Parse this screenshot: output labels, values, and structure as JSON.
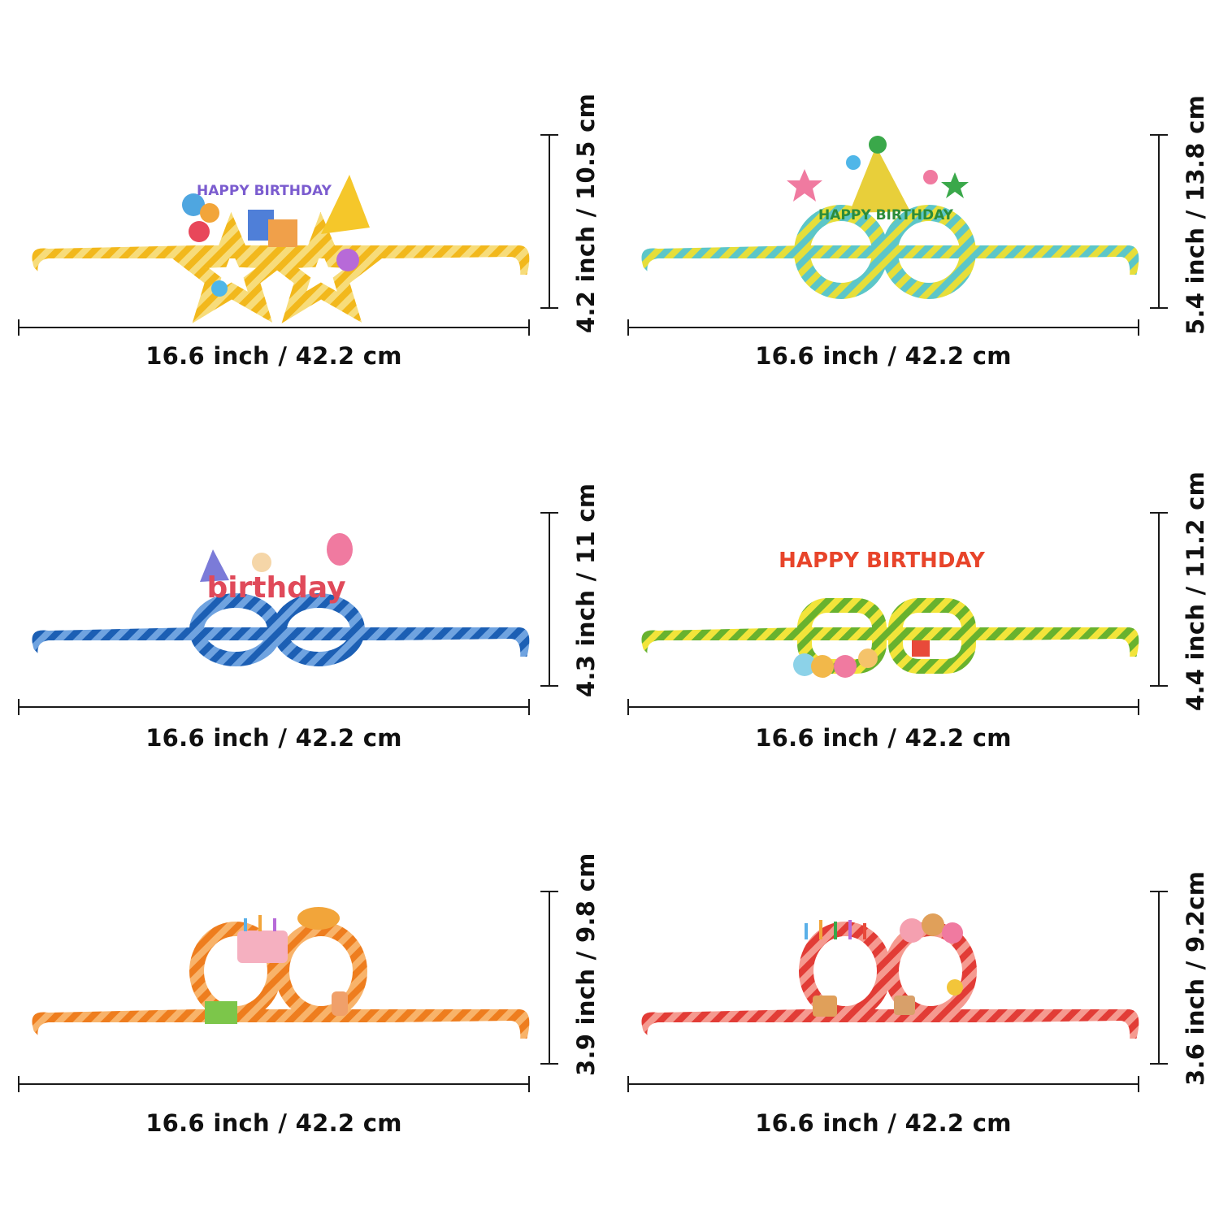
{
  "items": [
    {
      "width_label": "16.6 inch / 42.2 cm",
      "height_label": "4.2 inch / 10.5 cm",
      "frame_color": "#f2b81c",
      "stripe_color": "#f7dc7a",
      "banner_text": "HAPPY BIRTHDAY",
      "banner_color": "#7b5ccf"
    },
    {
      "width_label": "16.6 inch / 42.2 cm",
      "height_label": "5.4 inch / 13.8 cm",
      "frame_color": "#5cc6c8",
      "stripe_color": "#e6de3a",
      "banner_text": "HAPPY BIRTHDAY",
      "banner_color": "#2c8c3a"
    },
    {
      "width_label": "16.6 inch / 42.2 cm",
      "height_label": "4.3 inch / 11 cm",
      "frame_color": "#1c5fb4",
      "stripe_color": "#6fa3e0",
      "banner_text": "birthday",
      "banner_color": "#e04a5a"
    },
    {
      "width_label": "16.6 inch / 42.2 cm",
      "height_label": "4.4 inch / 11.2 cm",
      "frame_color": "#68b22e",
      "stripe_color": "#f2e43a",
      "banner_text": "HAPPY BIRTHDAY",
      "banner_color": "#e8442a"
    },
    {
      "width_label": "16.6 inch / 42.2 cm",
      "height_label": "3.9 inch / 9.8 cm",
      "frame_color": "#ee7d1e",
      "stripe_color": "#f8b36a",
      "banner_text": "",
      "banner_color": "#e15a7a"
    },
    {
      "width_label": "16.6 inch / 42.2 cm",
      "height_label": "3.6 inch / 9.2cm",
      "frame_color": "#e23c36",
      "stripe_color": "#f59a90",
      "banner_text": "",
      "banner_color": "#d0462e"
    }
  ]
}
